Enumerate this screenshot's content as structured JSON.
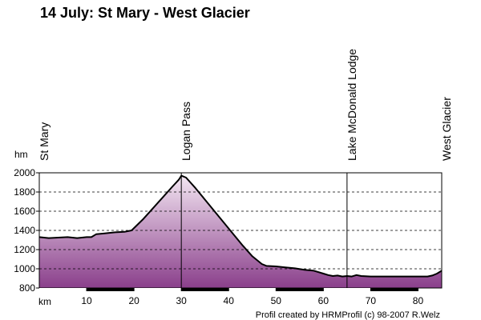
{
  "title": "14 July: St Mary - West Glacier",
  "credit": "Profil created by HRMProfil (c) 98-2007 R.Welz",
  "colors": {
    "fill_top": "#f3e6f2",
    "fill_bottom": "#8a3f8b",
    "line": "#000000"
  },
  "chart_data": {
    "type": "area",
    "title": "14 July: St Mary - West Glacier",
    "xlabel": "km",
    "ylabel": "hm",
    "xlim": [
      0,
      85
    ],
    "ylim": [
      800,
      2000
    ],
    "x_ticks": [
      10,
      20,
      30,
      40,
      50,
      60,
      70,
      80
    ],
    "y_ticks": [
      800,
      1000,
      1200,
      1400,
      1600,
      1800,
      2000
    ],
    "grid": true,
    "waypoints": [
      {
        "name": "St Mary",
        "x": 0
      },
      {
        "name": "Logan Pass",
        "x": 30
      },
      {
        "name": "Lake McDonald Lodge",
        "x": 65
      },
      {
        "name": "West Glacier",
        "x": 85
      }
    ],
    "series": [
      {
        "x": [
          0,
          2,
          4,
          6,
          8,
          10,
          11,
          12,
          14,
          16,
          18,
          19.5,
          22,
          24,
          26,
          28,
          29.5,
          30,
          31,
          33,
          35,
          37,
          39,
          41,
          43,
          45,
          47,
          48,
          50,
          52,
          54,
          56,
          58,
          59,
          60,
          61,
          62,
          63,
          64,
          65,
          66,
          67,
          68,
          70,
          72,
          74,
          76,
          78,
          80,
          82,
          83,
          84,
          85
        ],
        "values": [
          1330,
          1320,
          1325,
          1330,
          1320,
          1330,
          1330,
          1360,
          1370,
          1380,
          1385,
          1400,
          1520,
          1630,
          1740,
          1850,
          1930,
          1970,
          1950,
          1840,
          1720,
          1600,
          1480,
          1360,
          1240,
          1130,
          1050,
          1030,
          1025,
          1015,
          1005,
          990,
          980,
          965,
          950,
          935,
          925,
          930,
          920,
          925,
          920,
          935,
          925,
          920,
          920,
          920,
          920,
          920,
          920,
          920,
          930,
          950,
          980
        ]
      }
    ]
  }
}
